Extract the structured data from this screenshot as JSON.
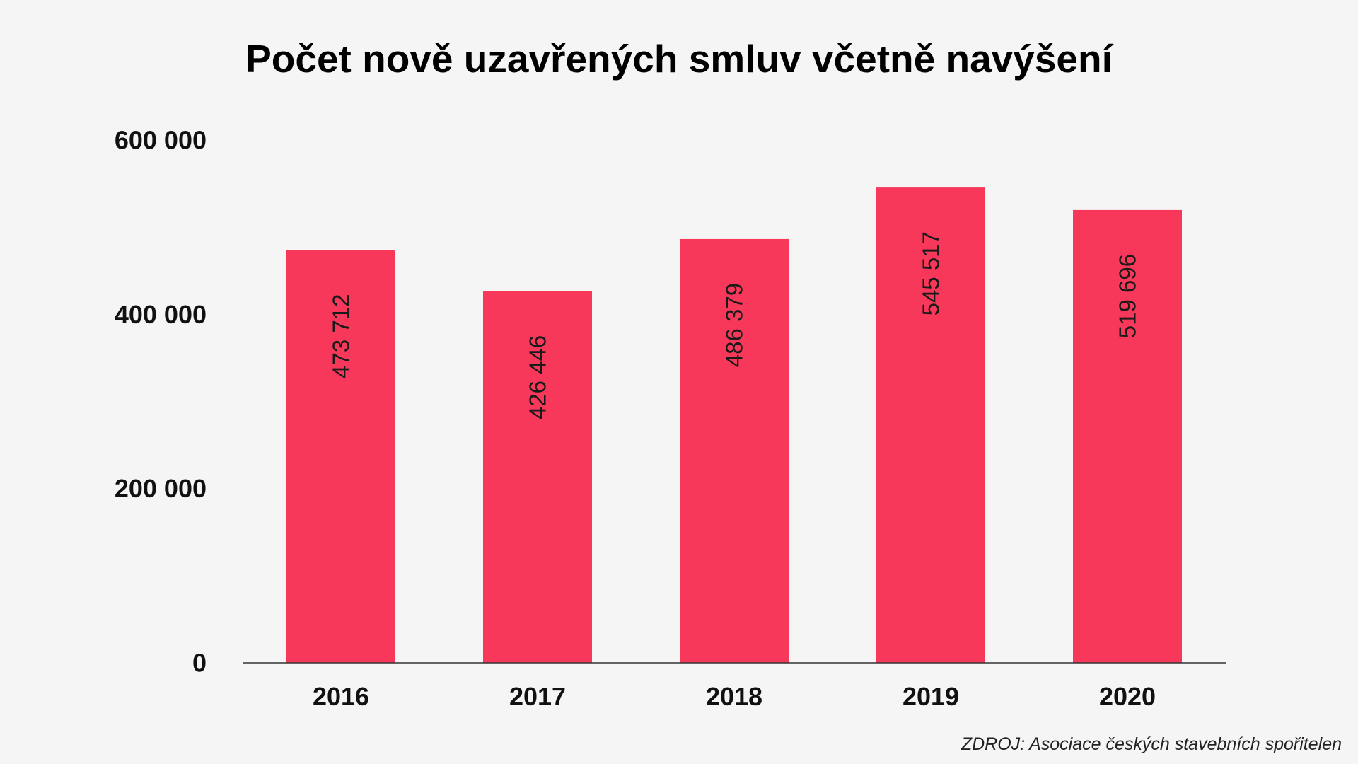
{
  "chart_data": {
    "type": "bar",
    "title": "Počet nově uzavřených smluv včetně navýšení",
    "categories": [
      "2016",
      "2017",
      "2018",
      "2019",
      "2020"
    ],
    "values": [
      473712,
      426446,
      486379,
      545517,
      519696
    ],
    "value_labels": [
      "473 712",
      "426 446",
      "486 379",
      "545 517",
      "519 696"
    ],
    "ylim": [
      0,
      600000
    ],
    "yticks": [
      0,
      200000,
      400000,
      600000
    ],
    "ytick_labels": [
      "0",
      "200 000",
      "400 000",
      "600 000"
    ],
    "xlabel": "",
    "ylabel": "",
    "grid": false,
    "legend": "none",
    "bar_color": "#f7385a",
    "label_orientation": "vertical"
  },
  "source": "ZDROJ: Asociace českých stavebních spořitelen",
  "colors": {
    "background": "#f5f5f5",
    "bar": "#f7385a",
    "axis": "#333333",
    "text": "#111111"
  }
}
